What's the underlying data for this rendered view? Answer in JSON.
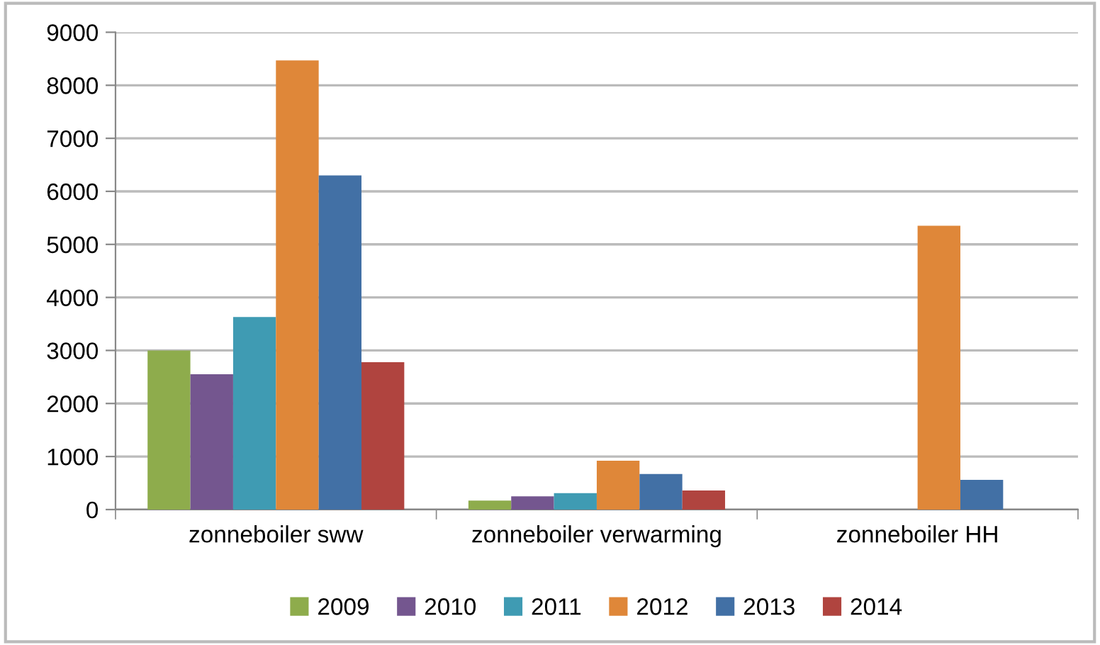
{
  "chart_data": {
    "type": "bar",
    "categories": [
      "zonneboiler sww",
      "zonneboiler verwarming",
      "zonneboiler HH"
    ],
    "series": [
      {
        "name": "2009",
        "color": "#8eac4c",
        "values": [
          3000,
          170,
          null
        ]
      },
      {
        "name": "2010",
        "color": "#74568f",
        "values": [
          2550,
          250,
          null
        ]
      },
      {
        "name": "2011",
        "color": "#3f9bb3",
        "values": [
          3630,
          310,
          null
        ]
      },
      {
        "name": "2012",
        "color": "#df8739",
        "values": [
          8470,
          920,
          5350
        ]
      },
      {
        "name": "2013",
        "color": "#4270a5",
        "values": [
          6300,
          670,
          560
        ]
      },
      {
        "name": "2014",
        "color": "#b0443f",
        "values": [
          2780,
          360,
          null
        ]
      }
    ],
    "ylim": [
      0,
      9000
    ],
    "yticks": [
      0,
      1000,
      2000,
      3000,
      4000,
      5000,
      6000,
      7000,
      8000,
      9000
    ],
    "grid": "y",
    "legend": "bottom"
  }
}
